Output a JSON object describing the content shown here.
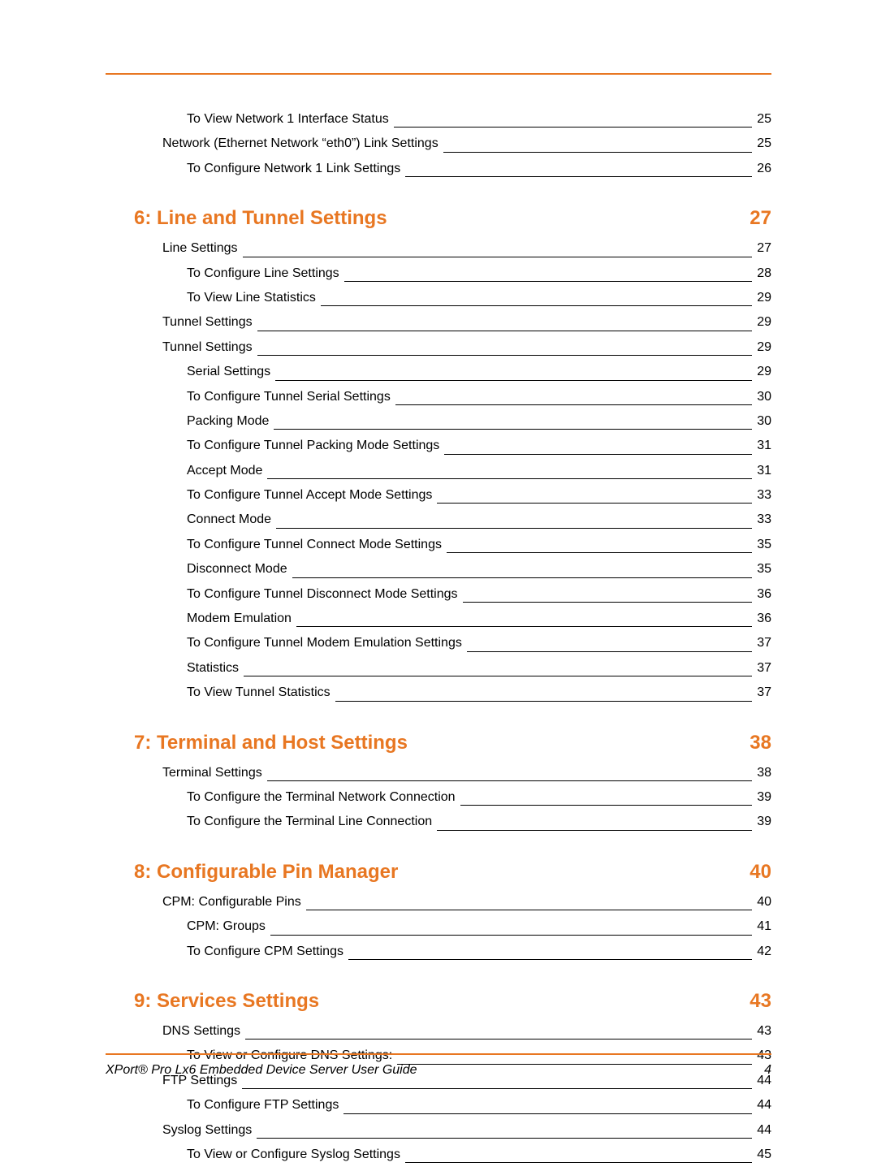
{
  "colors": {
    "accent": "#e87722",
    "text": "#000000",
    "background": "#ffffff"
  },
  "typography": {
    "body_fontsize": 16,
    "heading_fontsize": 24,
    "footer_fontsize": 16
  },
  "pre_entries": [
    {
      "label": "To View Network 1 Interface Status",
      "page": "25",
      "indent": 2
    },
    {
      "label": "Network (Ethernet Network “eth0”) Link Settings",
      "page": "25",
      "indent": 1
    },
    {
      "label": "To Configure Network 1 Link Settings",
      "page": "26",
      "indent": 2
    }
  ],
  "sections": [
    {
      "heading": "6: Line and Tunnel Settings",
      "page": "27",
      "entries": [
        {
          "label": "Line Settings",
          "page": "27",
          "indent": 1
        },
        {
          "label": "To Configure Line Settings",
          "page": "28",
          "indent": 2
        },
        {
          "label": "To View Line Statistics",
          "page": "29",
          "indent": 2
        },
        {
          "label": "Tunnel Settings",
          "page": "29",
          "indent": 1
        },
        {
          "label": "Tunnel Settings",
          "page": "29",
          "indent": 1
        },
        {
          "label": "Serial Settings",
          "page": "29",
          "indent": 2
        },
        {
          "label": "To Configure Tunnel Serial Settings",
          "page": "30",
          "indent": 2
        },
        {
          "label": "Packing Mode",
          "page": "30",
          "indent": 2
        },
        {
          "label": "To Configure Tunnel Packing Mode Settings",
          "page": "31",
          "indent": 2
        },
        {
          "label": "Accept Mode",
          "page": "31",
          "indent": 2
        },
        {
          "label": "To Configure Tunnel Accept Mode Settings",
          "page": "33",
          "indent": 2
        },
        {
          "label": "Connect Mode",
          "page": "33",
          "indent": 2
        },
        {
          "label": "To Configure Tunnel Connect Mode Settings",
          "page": "35",
          "indent": 2
        },
        {
          "label": "Disconnect Mode",
          "page": "35",
          "indent": 2
        },
        {
          "label": "To Configure Tunnel Disconnect Mode Settings",
          "page": "36",
          "indent": 2
        },
        {
          "label": "Modem Emulation",
          "page": "36",
          "indent": 2
        },
        {
          "label": "To Configure Tunnel Modem Emulation Settings",
          "page": "37",
          "indent": 2
        },
        {
          "label": "Statistics",
          "page": "37",
          "indent": 2
        },
        {
          "label": "To View Tunnel Statistics",
          "page": "37",
          "indent": 2
        }
      ]
    },
    {
      "heading": "7: Terminal and Host Settings",
      "page": "38",
      "entries": [
        {
          "label": "Terminal Settings",
          "page": "38",
          "indent": 1
        },
        {
          "label": "To Configure the Terminal Network Connection",
          "page": "39",
          "indent": 2
        },
        {
          "label": "To Configure the Terminal Line Connection",
          "page": "39",
          "indent": 2
        }
      ]
    },
    {
      "heading": "8: Configurable Pin Manager",
      "page": "40",
      "entries": [
        {
          "label": "CPM: Configurable Pins",
          "page": "40",
          "indent": 1
        },
        {
          "label": "CPM: Groups",
          "page": "41",
          "indent": 2
        },
        {
          "label": "To Configure CPM Settings",
          "page": "42",
          "indent": 2
        }
      ]
    },
    {
      "heading": "9: Services Settings",
      "page": "43",
      "entries": [
        {
          "label": "DNS Settings",
          "page": "43",
          "indent": 1
        },
        {
          "label": "To View or Configure DNS Settings:",
          "page": "43",
          "indent": 2
        },
        {
          "label": "FTP Settings",
          "page": "44",
          "indent": 1
        },
        {
          "label": "To Configure FTP Settings",
          "page": "44",
          "indent": 2
        },
        {
          "label": "Syslog Settings",
          "page": "44",
          "indent": 1
        },
        {
          "label": "To View or Configure Syslog Settings",
          "page": "45",
          "indent": 2
        }
      ]
    }
  ],
  "footer": {
    "title": "XPort® Pro Lx6 Embedded Device Server User Guide",
    "page_number": "4"
  }
}
